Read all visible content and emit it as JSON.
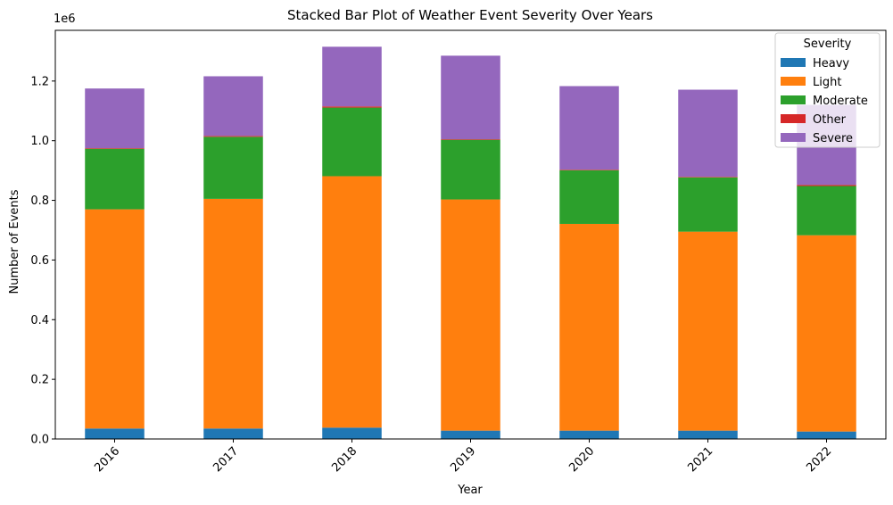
{
  "chart_data": {
    "type": "bar",
    "stacked": true,
    "title": "Stacked Bar Plot of Weather Event Severity Over Years",
    "xlabel": "Year",
    "ylabel": "Number of Events",
    "y_offset_label": "1e6",
    "ylim": [
      0,
      1.37
    ],
    "y_scale_note": "values in units of 1e6",
    "yticks": [
      "0.0",
      "0.2",
      "0.4",
      "0.6",
      "0.8",
      "1.0",
      "1.2"
    ],
    "ytick_values": [
      0.0,
      0.2,
      0.4,
      0.6,
      0.8,
      1.0,
      1.2
    ],
    "categories": [
      "2016",
      "2017",
      "2018",
      "2019",
      "2020",
      "2021",
      "2022"
    ],
    "legend": {
      "title": "Severity",
      "placement": "top-right"
    },
    "grid": false,
    "series": [
      {
        "name": "Heavy",
        "color": "#1f77b4",
        "values": [
          0.035,
          0.035,
          0.038,
          0.028,
          0.028,
          0.028,
          0.025
        ]
      },
      {
        "name": "Light",
        "color": "#ff7f0e",
        "values": [
          0.735,
          0.77,
          0.843,
          0.775,
          0.693,
          0.667,
          0.658
        ]
      },
      {
        "name": "Moderate",
        "color": "#2ca02c",
        "values": [
          0.203,
          0.208,
          0.23,
          0.2,
          0.18,
          0.182,
          0.165
        ]
      },
      {
        "name": "Other",
        "color": "#d62728",
        "values": [
          0.002,
          0.003,
          0.004,
          0.002,
          0.002,
          0.002,
          0.004
        ]
      },
      {
        "name": "Severe",
        "color": "#9467bd",
        "values": [
          0.2,
          0.2,
          0.2,
          0.28,
          0.28,
          0.292,
          0.268
        ]
      }
    ]
  }
}
